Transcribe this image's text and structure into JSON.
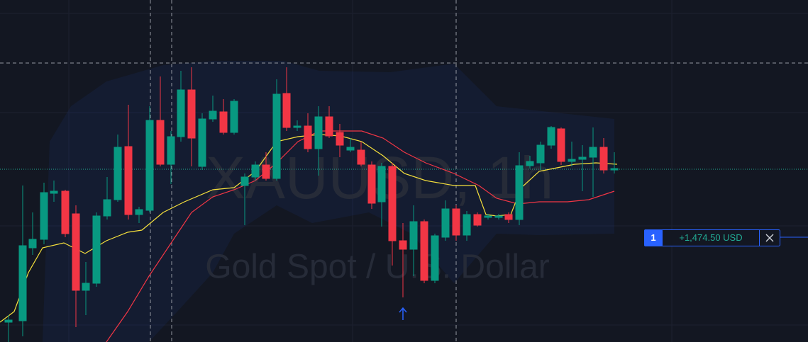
{
  "watermark": {
    "symbol": "XAUUSD, 1h",
    "description": "Gold Spot / U.S. Dollar"
  },
  "position": {
    "quantity": "1",
    "pnl": "+1,474.50 USD"
  }
}
